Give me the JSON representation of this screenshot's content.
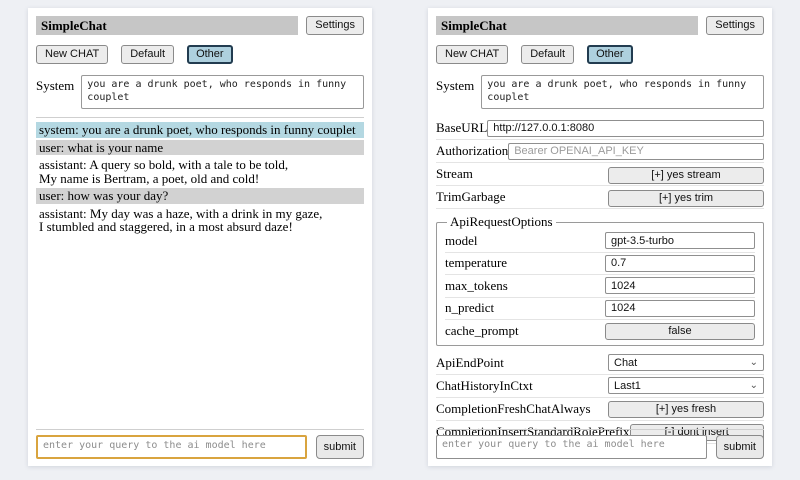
{
  "header": {
    "title": "SimpleChat",
    "settings_label": "Settings",
    "sessions": [
      "New CHAT",
      "Default",
      "Other"
    ],
    "active_session": "Other",
    "system_label": "System",
    "system_prompt": "you are a drunk poet, who responds in funny couplet"
  },
  "chat": {
    "messages": [
      {
        "role": "system",
        "text": "system: you are a drunk poet, who responds in funny couplet"
      },
      {
        "role": "user",
        "text": "user: what is your name"
      },
      {
        "role": "assistant",
        "text": "assistant: A query so bold, with a tale to be told,\nMy name is Bertram, a poet, old and cold!"
      },
      {
        "role": "user",
        "text": "user: how was your day?"
      },
      {
        "role": "assistant",
        "text": "assistant: My day was a haze, with a drink in my gaze,\nI stumbled and staggered, in a most absurd daze!"
      }
    ]
  },
  "settings": {
    "base_url": {
      "label": "BaseURL",
      "value": "http://127.0.0.1:8080"
    },
    "authorization": {
      "label": "Authorization",
      "placeholder": "Bearer OPENAI_API_KEY"
    },
    "stream": {
      "label": "Stream",
      "button": "[+] yes stream"
    },
    "trim_garbage": {
      "label": "TrimGarbage",
      "button": "[+] yes trim"
    },
    "api_request_options": {
      "legend": "ApiRequestOptions",
      "model": {
        "label": "model",
        "value": "gpt-3.5-turbo"
      },
      "temperature": {
        "label": "temperature",
        "value": "0.7"
      },
      "max_tokens": {
        "label": "max_tokens",
        "value": "1024"
      },
      "n_predict": {
        "label": "n_predict",
        "value": "1024"
      },
      "cache_prompt": {
        "label": "cache_prompt",
        "button": "false"
      }
    },
    "api_endpoint": {
      "label": "ApiEndPoint",
      "value": "Chat"
    },
    "chat_history_in_ctxt": {
      "label": "ChatHistoryInCtxt",
      "value": "Last1"
    },
    "completion_fresh_chat_always": {
      "label": "CompletionFreshChatAlways",
      "button": "[+] yes fresh"
    },
    "completion_insert_standard_role_prefix": {
      "label": "CompletionInsertStandardRolePrefix",
      "button": "[-] dont insert"
    }
  },
  "query": {
    "placeholder": "enter your query to the ai model here",
    "submit_label": "submit"
  },
  "colors": {
    "page_background": "#eef0f4",
    "titlebar_background": "#c6c6c6",
    "active_session_background": "#aed0de",
    "active_session_border": "#223c50",
    "system_message_background": "#b4d8e2",
    "user_message_background": "#d2d2d2",
    "focused_input_border": "#d9a43f"
  }
}
